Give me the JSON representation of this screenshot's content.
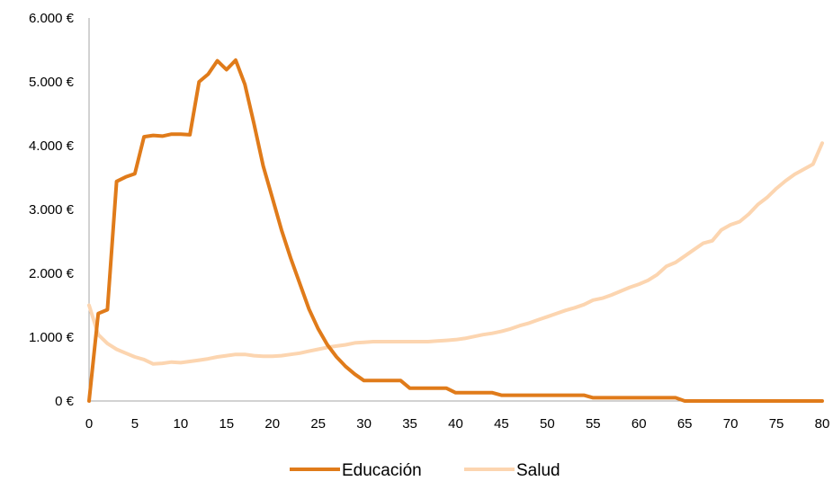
{
  "chart_data": {
    "type": "line",
    "title": "",
    "xlabel": "",
    "ylabel": "",
    "xlim": [
      0,
      80
    ],
    "ylim": [
      0,
      6000
    ],
    "x_ticks": [
      0,
      5,
      10,
      15,
      20,
      25,
      30,
      35,
      40,
      45,
      50,
      55,
      60,
      65,
      70,
      75,
      80
    ],
    "x_tick_labels": [
      "0",
      "5",
      "10",
      "15",
      "20",
      "25",
      "30",
      "35",
      "40",
      "45",
      "50",
      "55",
      "60",
      "65",
      "70",
      "75",
      "80"
    ],
    "y_ticks": [
      0,
      1000,
      2000,
      3000,
      4000,
      5000,
      6000
    ],
    "y_tick_labels": [
      "0 €",
      "1.000 €",
      "2.000 €",
      "3.000 €",
      "4.000 €",
      "5.000 €",
      "6.000 €"
    ],
    "grid": false,
    "legend_position": "bottom",
    "x": [
      0,
      1,
      2,
      3,
      4,
      5,
      6,
      7,
      8,
      9,
      10,
      11,
      12,
      13,
      14,
      15,
      16,
      17,
      18,
      19,
      20,
      21,
      22,
      23,
      24,
      25,
      26,
      27,
      28,
      29,
      30,
      31,
      32,
      33,
      34,
      35,
      36,
      37,
      38,
      39,
      40,
      41,
      42,
      43,
      44,
      45,
      46,
      47,
      48,
      49,
      50,
      51,
      52,
      53,
      54,
      55,
      56,
      57,
      58,
      59,
      60,
      61,
      62,
      63,
      64,
      65,
      66,
      67,
      68,
      69,
      70,
      71,
      72,
      73,
      74,
      75,
      76,
      77,
      78,
      79,
      80
    ],
    "series": [
      {
        "name": "Educación",
        "color": "#e07b1a",
        "values": [
          0,
          1370,
          1430,
          3440,
          3510,
          3560,
          4140,
          4160,
          4150,
          4180,
          4180,
          4170,
          5000,
          5120,
          5330,
          5190,
          5340,
          4960,
          4340,
          3680,
          3180,
          2680,
          2240,
          1840,
          1440,
          1130,
          880,
          690,
          540,
          420,
          320,
          320,
          320,
          320,
          320,
          200,
          200,
          200,
          200,
          200,
          130,
          130,
          130,
          130,
          130,
          90,
          90,
          90,
          90,
          90,
          90,
          90,
          90,
          90,
          90,
          50,
          50,
          50,
          50,
          50,
          50,
          50,
          50,
          50,
          50,
          0,
          0,
          0,
          0,
          0,
          0,
          0,
          0,
          0,
          0,
          0,
          0,
          0,
          0,
          0,
          0
        ]
      },
      {
        "name": "Salud",
        "color": "#fcd5b0",
        "values": [
          1500,
          1040,
          900,
          810,
          750,
          690,
          650,
          580,
          590,
          610,
          600,
          620,
          640,
          660,
          690,
          710,
          730,
          730,
          710,
          700,
          700,
          710,
          730,
          750,
          780,
          810,
          840,
          860,
          880,
          910,
          920,
          930,
          930,
          930,
          930,
          930,
          930,
          930,
          940,
          950,
          960,
          980,
          1010,
          1040,
          1060,
          1090,
          1130,
          1180,
          1220,
          1270,
          1320,
          1370,
          1420,
          1460,
          1510,
          1580,
          1610,
          1660,
          1720,
          1780,
          1830,
          1890,
          1980,
          2110,
          2170,
          2270,
          2370,
          2470,
          2510,
          2680,
          2760,
          2810,
          2930,
          3080,
          3190,
          3330,
          3450,
          3550,
          3630,
          3710,
          4040
        ]
      }
    ]
  }
}
